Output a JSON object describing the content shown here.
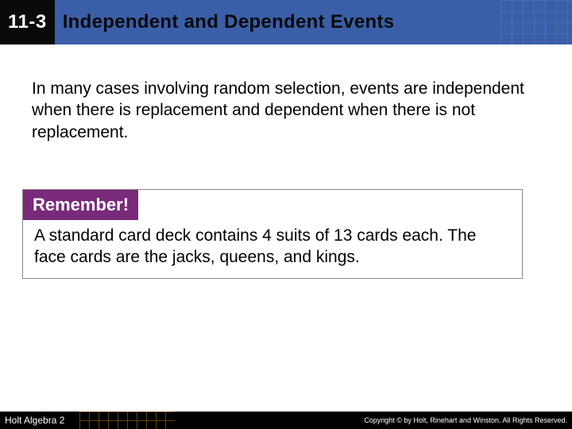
{
  "header": {
    "section_number": "11-3",
    "title": "Independent and Dependent Events",
    "bg_color": "#3a5fa8",
    "badge_bg": "#0a0a0a",
    "text_color": "#0a0a0a"
  },
  "body": {
    "paragraph": "In many cases involving random selection, events are independent when there is replacement and dependent when there is not replacement.",
    "fontsize": 21
  },
  "callout": {
    "label": "Remember!",
    "label_bg": "#7a2a7a",
    "label_color": "#ffffff",
    "text": "A standard card deck contains 4 suits of 13 cards each. The face cards are the jacks, queens, and kings.",
    "border_color": "#888888"
  },
  "footer": {
    "book": "Holt Algebra 2",
    "copyright": "Copyright © by Holt, Rinehart and Winston. All Rights Reserved.",
    "bg_color": "#000000"
  }
}
